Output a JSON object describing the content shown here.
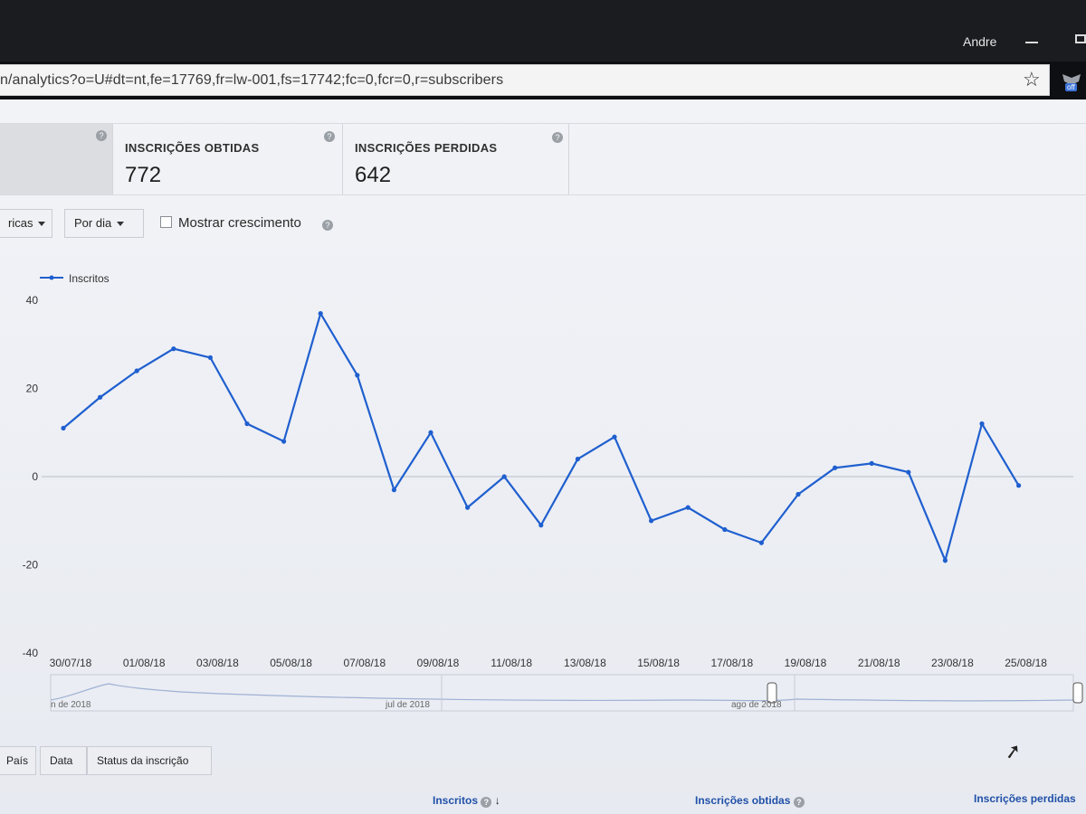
{
  "window": {
    "user_name": "Andre"
  },
  "address_bar": {
    "url": "n/analytics?o=U#dt=nt,fe=17769,fr=lw-001,fs=17742;fc=0,fcr=0,r=subscribers",
    "extension_badge": "off"
  },
  "metrics": [
    {
      "label": "INSCRIÇÕES OBTIDAS",
      "value": "772"
    },
    {
      "label": "INSCRIÇÕES PERDIDAS",
      "value": "642"
    }
  ],
  "controls": {
    "metric_dropdown": "ricas",
    "period_dropdown": "Por dia",
    "growth_checkbox_label": "Mostrar crescimento",
    "growth_checked": false
  },
  "chart_data": {
    "type": "line",
    "legend_position": "top-left",
    "series": [
      {
        "name": "Inscritos",
        "color": "#1f5fcf",
        "values": [
          11,
          18,
          24,
          29,
          27,
          12,
          8,
          37,
          23,
          -3,
          10,
          -7,
          0,
          -11,
          4,
          9,
          -10,
          -7,
          -12,
          -15,
          -4,
          2,
          3,
          1,
          -19,
          12,
          -2
        ]
      }
    ],
    "x": [
      "30/07/18",
      "31/07/18",
      "01/08/18",
      "02/08/18",
      "03/08/18",
      "04/08/18",
      "05/08/18",
      "06/08/18",
      "07/08/18",
      "08/08/18",
      "09/08/18",
      "10/08/18",
      "11/08/18",
      "12/08/18",
      "13/08/18",
      "14/08/18",
      "15/08/18",
      "16/08/18",
      "17/08/18",
      "18/08/18",
      "19/08/18",
      "20/08/18",
      "21/08/18",
      "22/08/18",
      "23/08/18",
      "24/08/18",
      "25/08/18"
    ],
    "x_tick_labels": [
      "30/07/18",
      "01/08/18",
      "03/08/18",
      "05/08/18",
      "07/08/18",
      "09/08/18",
      "11/08/18",
      "13/08/18",
      "15/08/18",
      "17/08/18",
      "19/08/18",
      "21/08/18",
      "23/08/18",
      "25/08/18"
    ],
    "y_ticks": [
      40,
      20,
      0,
      -20,
      -40
    ],
    "ylim": [
      -40,
      40
    ],
    "zero_line": true,
    "navigator_labels": [
      "n de 2018",
      "jul de 2018",
      "ago de 2018"
    ]
  },
  "table": {
    "tabs": [
      "País",
      "Data",
      "Status da inscrição"
    ],
    "columns": [
      "Inscritos",
      "Inscrições obtidas",
      "Inscrições perdidas"
    ]
  }
}
